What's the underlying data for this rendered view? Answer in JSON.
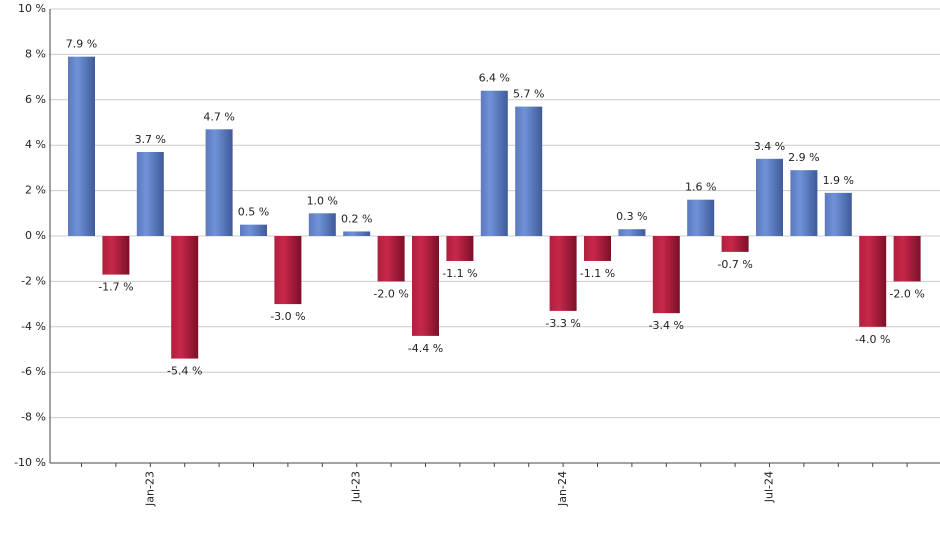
{
  "chart_data": {
    "type": "bar",
    "categories": [
      null,
      null,
      "Jan-23",
      null,
      null,
      null,
      null,
      null,
      "Jul-23",
      null,
      null,
      null,
      null,
      null,
      "Jan-24",
      null,
      null,
      null,
      null,
      null,
      "Jul-24",
      null,
      null,
      null,
      null
    ],
    "values": [
      7.9,
      -1.7,
      3.7,
      -5.4,
      4.7,
      0.5,
      -3.0,
      1.0,
      0.2,
      -2.0,
      -4.4,
      -1.1,
      6.4,
      5.7,
      -3.3,
      -1.1,
      0.3,
      -3.4,
      1.6,
      -0.7,
      3.4,
      2.9,
      1.9,
      -4.0,
      -2.0
    ],
    "value_labels": [
      "7.9 %",
      "-1.7 %",
      "3.7 %",
      "-5.4 %",
      "4.7 %",
      "0.5 %",
      "-3.0 %",
      "1.0 %",
      "0.2 %",
      "-2.0 %",
      "-4.4 %",
      "-1.1 %",
      "6.4 %",
      "5.7 %",
      "-3.3 %",
      "-1.1 %",
      "0.3 %",
      "-3.4 %",
      "1.6 %",
      "-0.7 %",
      "3.4 %",
      "2.9 %",
      "1.9 %",
      "-4.0 %",
      "-2.0 %"
    ],
    "positive_color": "#6f93d8",
    "negative_color": "#c8284a",
    "ylim": [
      -10,
      10
    ],
    "yticks": [
      {
        "value": -10,
        "label": "-10 %"
      },
      {
        "value": -8,
        "label": "-8 %"
      },
      {
        "value": -6,
        "label": "-6 %"
      },
      {
        "value": -4,
        "label": "-4 %"
      },
      {
        "value": -2,
        "label": "-2 %"
      },
      {
        "value": 0,
        "label": "0 %"
      },
      {
        "value": 2,
        "label": "2 %"
      },
      {
        "value": 4,
        "label": "4 %"
      },
      {
        "value": 6,
        "label": "6 %"
      },
      {
        "value": 8,
        "label": "8 %"
      },
      {
        "value": 10,
        "label": "10 %"
      }
    ],
    "grid": true
  }
}
